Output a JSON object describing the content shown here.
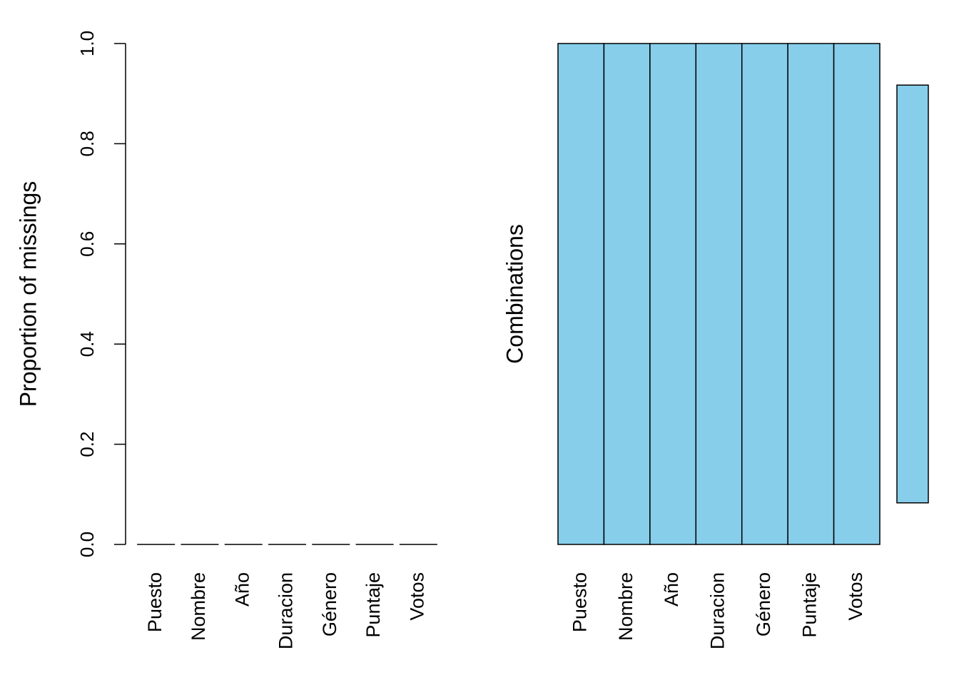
{
  "chart_data": [
    {
      "type": "bar",
      "ylabel": "Proportion of missings",
      "categories": [
        "Puesto",
        "Nombre",
        "Año",
        "Duracion",
        "Género",
        "Puntaje",
        "Votos"
      ],
      "values": [
        0,
        0,
        0,
        0,
        0,
        0,
        0
      ],
      "color": "#87ceeb",
      "ylim": [
        0,
        1
      ],
      "yticks": [
        {
          "value": 0,
          "label": "0.0"
        },
        0.2,
        0.4,
        0.6,
        0.8,
        {
          "value": 1,
          "label": "1.0"
        }
      ]
    },
    {
      "type": "combinations",
      "ylabel": "Combinations",
      "categories": [
        "Puesto",
        "Nombre",
        "Año",
        "Duracion",
        "Género",
        "Puntaje",
        "Votos"
      ],
      "missing": [
        [
          0,
          0,
          0,
          0,
          0,
          0,
          0
        ]
      ],
      "frequencies": [
        1
      ],
      "color": "#87ceeb",
      "missing_color": "#ff0000"
    }
  ]
}
